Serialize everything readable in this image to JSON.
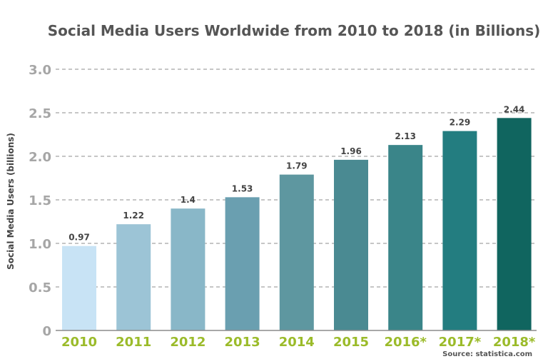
{
  "chart_data": {
    "type": "bar",
    "title": "Social Media Users Worldwide from 2010 to 2018 (in Billions)",
    "ylabel": "Social Media Users (billions)",
    "xlabel": "",
    "categories": [
      "2010",
      "2011",
      "2012",
      "2013",
      "2014",
      "2015",
      "2016*",
      "2017*",
      "2018*"
    ],
    "values": [
      0.97,
      1.22,
      1.4,
      1.53,
      1.79,
      1.96,
      2.13,
      2.29,
      2.44
    ],
    "data_labels": [
      "0.97",
      "1.22",
      "1.4",
      "1.53",
      "1.79",
      "1.96",
      "2.13",
      "2.29",
      "2.44"
    ],
    "bar_colors": [
      "#c8e3f5",
      "#9cc4d6",
      "#89b7c8",
      "#6a9fb0",
      "#5e97a0",
      "#4a8a92",
      "#3a8589",
      "#237d80",
      "#10655f"
    ],
    "ylim": [
      0,
      3.0
    ],
    "yticks": [
      "0",
      "0.5",
      "1.0",
      "1.5",
      "2.0",
      "2.5",
      "3.0"
    ],
    "ytick_values": [
      0,
      0.5,
      1.0,
      1.5,
      2.0,
      2.5,
      3.0
    ],
    "grid": true,
    "legend": "none",
    "source": "Source: statistica.com",
    "colors": {
      "title": "#555555",
      "xtick": "#9bbb2a",
      "ytick": "#a6a6a6",
      "grid": "#8c8c8c"
    }
  }
}
